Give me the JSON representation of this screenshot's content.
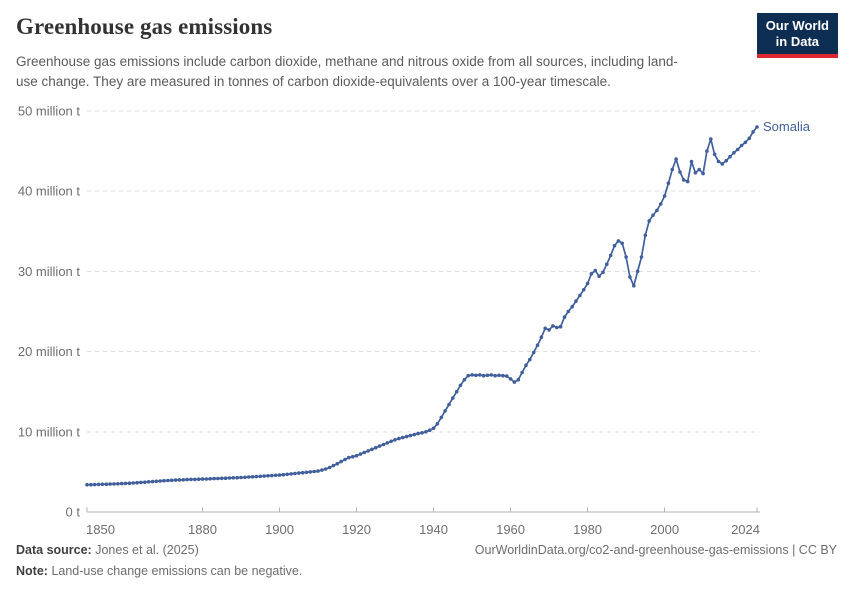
{
  "header": {
    "title": "Greenhouse gas emissions",
    "subtitle": "Greenhouse gas emissions include carbon dioxide, methane and nitrous oxide from all sources, including land-use change. They are measured in tonnes of carbon dioxide-equivalents over a 100-year timescale.",
    "logo": {
      "line1": "Our World",
      "line2": "in Data",
      "bg_color": "#0d2e52",
      "accent_color": "#dc2830"
    }
  },
  "chart_data": {
    "type": "line",
    "title": "Greenhouse gas emissions",
    "entity_label": "Somalia",
    "unit": "tonnes of CO2-equivalents",
    "grid": "horizontal-dashed",
    "legend_position": "end-of-line-label",
    "x_years": {
      "start": 1850,
      "end": 2024,
      "step": 1
    },
    "xticks": [
      1850,
      1880,
      1900,
      1920,
      1940,
      1960,
      1980,
      2000,
      2024
    ],
    "ylim_million_t": [
      0,
      50
    ],
    "yticks": [
      {
        "value_million_t": 0,
        "label": "0 t"
      },
      {
        "value_million_t": 10,
        "label": "10 million t"
      },
      {
        "value_million_t": 20,
        "label": "20 million t"
      },
      {
        "value_million_t": 30,
        "label": "30 million t"
      },
      {
        "value_million_t": 40,
        "label": "40 million t"
      },
      {
        "value_million_t": 50,
        "label": "50 million t"
      }
    ],
    "series": [
      {
        "name": "Somalia",
        "color": "#415f9b",
        "values_million_t": [
          3.4,
          3.41,
          3.42,
          3.44,
          3.45,
          3.47,
          3.48,
          3.5,
          3.52,
          3.54,
          3.56,
          3.59,
          3.62,
          3.65,
          3.69,
          3.72,
          3.76,
          3.79,
          3.83,
          3.86,
          3.9,
          3.93,
          3.95,
          3.98,
          4.0,
          4.02,
          4.04,
          4.06,
          4.07,
          4.09,
          4.1,
          4.12,
          4.14,
          4.16,
          4.18,
          4.2,
          4.22,
          4.24,
          4.26,
          4.28,
          4.3,
          4.33,
          4.36,
          4.39,
          4.42,
          4.45,
          4.48,
          4.51,
          4.54,
          4.57,
          4.6,
          4.65,
          4.7,
          4.75,
          4.8,
          4.85,
          4.9,
          4.95,
          5.0,
          5.05,
          5.1,
          5.22,
          5.36,
          5.55,
          5.78,
          6.02,
          6.28,
          6.54,
          6.78,
          6.9,
          7.02,
          7.22,
          7.42,
          7.62,
          7.82,
          8.02,
          8.22,
          8.42,
          8.62,
          8.82,
          9.0,
          9.15,
          9.28,
          9.4,
          9.52,
          9.65,
          9.78,
          9.88,
          10.0,
          10.2,
          10.45,
          11.0,
          11.8,
          12.6,
          13.4,
          14.2,
          15.0,
          15.8,
          16.5,
          17.0,
          17.1,
          17.05,
          17.1,
          17.0,
          17.05,
          17.1,
          17.0,
          17.05,
          17.0,
          16.95,
          16.6,
          16.2,
          16.5,
          17.4,
          18.3,
          19.0,
          19.9,
          20.8,
          21.8,
          22.9,
          22.7,
          23.2,
          23.0,
          23.1,
          24.3,
          25.0,
          25.6,
          26.3,
          27.0,
          27.7,
          28.5,
          29.7,
          30.1,
          29.4,
          29.9,
          30.9,
          32.0,
          33.2,
          33.8,
          33.5,
          31.8,
          29.3,
          28.2,
          30.0,
          31.8,
          34.5,
          36.3,
          37.0,
          37.6,
          38.4,
          39.4,
          41.0,
          42.7,
          44.0,
          42.4,
          41.4,
          41.2,
          43.7,
          42.3,
          42.7,
          42.2,
          45.0,
          46.5,
          44.6,
          43.7,
          43.4,
          43.8,
          44.3,
          44.8,
          45.2,
          45.7,
          46.1,
          46.6,
          47.4,
          48.0
        ]
      }
    ],
    "colors": {
      "line": "#415f9b",
      "gridline": "#dddddd",
      "axis": "#b3b3b3",
      "tick_label": "#6e6e6e"
    }
  },
  "footer": {
    "data_source_label": "Data source:",
    "data_source_value": "Jones et al. (2025)",
    "note_label": "Note:",
    "note_value": "Land-use change emissions can be negative.",
    "right_text": "OurWorldinData.org/co2-and-greenhouse-gas-emissions | CC BY"
  }
}
